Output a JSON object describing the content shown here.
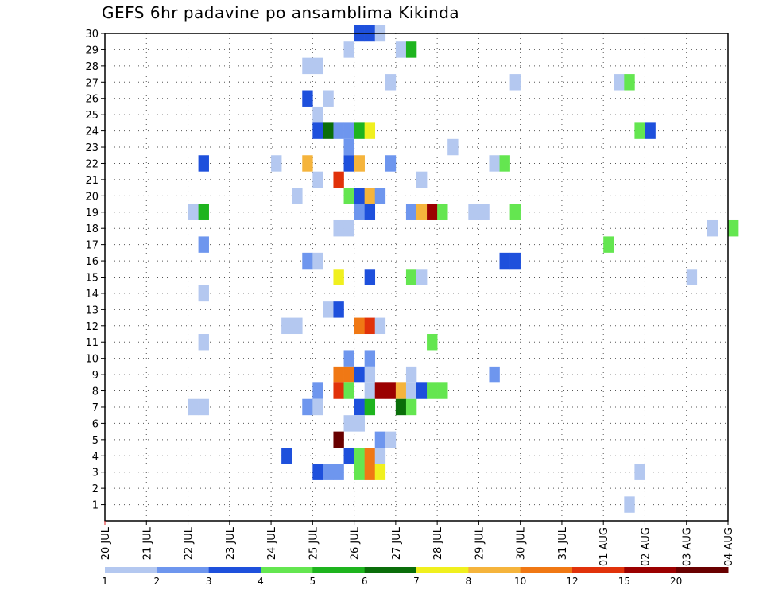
{
  "chart_data": {
    "type": "heatmap",
    "title": "GEFS 6hr padavine po ansamblima Kikinda",
    "xlabel": "",
    "ylabel": "",
    "x_tick_labels": [
      "20 JUL",
      "21 JUL",
      "22 JUL",
      "23 JUL",
      "24 JUL",
      "25 JUL",
      "26 JUL",
      "27 JUL",
      "28 JUL",
      "29 JUL",
      "30 JUL",
      "31 JUL",
      "01 AUG",
      "02 AUG",
      "03 AUG",
      "04 AUG"
    ],
    "x_range_days": [
      0,
      15
    ],
    "y_tick_labels": [
      "1",
      "2",
      "3",
      "4",
      "5",
      "6",
      "7",
      "8",
      "9",
      "10",
      "11",
      "12",
      "13",
      "14",
      "15",
      "16",
      "17",
      "18",
      "19",
      "20",
      "21",
      "22",
      "23",
      "24",
      "25",
      "26",
      "27",
      "28",
      "29",
      "30"
    ],
    "y_range": [
      0,
      30
    ],
    "grid": true,
    "legend_position": "bottom",
    "color_scale": {
      "colors": [
        "#b4c8f0",
        "#6e96ee",
        "#1e50dc",
        "#64e650",
        "#1eb41e",
        "#0a6e0a",
        "#f0f01e",
        "#f5b43c",
        "#f07814",
        "#e1320a",
        "#9b0000",
        "#690000"
      ],
      "labels": [
        "1",
        "2",
        "3",
        "4",
        "5",
        "6",
        "7",
        "8",
        "10",
        "12",
        "15",
        "20"
      ]
    },
    "cells_note": "x = forecast time in days after 20 JUL 00UTC (6-hourly steps), y = ensemble member, v = colour class index",
    "cells": [
      {
        "x": 6.0,
        "y": 30,
        "v": 2
      },
      {
        "x": 6.25,
        "y": 30,
        "v": 2
      },
      {
        "x": 6.5,
        "y": 30,
        "v": 0
      },
      {
        "x": 5.75,
        "y": 29,
        "v": 0
      },
      {
        "x": 7.0,
        "y": 29,
        "v": 0
      },
      {
        "x": 7.25,
        "y": 29,
        "v": 4
      },
      {
        "x": 4.75,
        "y": 28,
        "v": 0
      },
      {
        "x": 5.0,
        "y": 28,
        "v": 0
      },
      {
        "x": 6.75,
        "y": 27,
        "v": 0
      },
      {
        "x": 9.75,
        "y": 27,
        "v": 0
      },
      {
        "x": 12.25,
        "y": 27,
        "v": 0
      },
      {
        "x": 12.5,
        "y": 27,
        "v": 3
      },
      {
        "x": 4.75,
        "y": 26,
        "v": 2
      },
      {
        "x": 5.25,
        "y": 26,
        "v": 0
      },
      {
        "x": 5.0,
        "y": 25,
        "v": 0
      },
      {
        "x": 5.0,
        "y": 24,
        "v": 2
      },
      {
        "x": 5.25,
        "y": 24,
        "v": 5
      },
      {
        "x": 5.5,
        "y": 24,
        "v": 1
      },
      {
        "x": 5.75,
        "y": 24,
        "v": 1
      },
      {
        "x": 6.0,
        "y": 24,
        "v": 4
      },
      {
        "x": 6.25,
        "y": 24,
        "v": 6
      },
      {
        "x": 12.75,
        "y": 24,
        "v": 3
      },
      {
        "x": 13.0,
        "y": 24,
        "v": 2
      },
      {
        "x": 5.75,
        "y": 23,
        "v": 1
      },
      {
        "x": 8.25,
        "y": 23,
        "v": 0
      },
      {
        "x": 2.25,
        "y": 22,
        "v": 2
      },
      {
        "x": 4.0,
        "y": 22,
        "v": 0
      },
      {
        "x": 4.75,
        "y": 22,
        "v": 7
      },
      {
        "x": 5.75,
        "y": 22,
        "v": 2
      },
      {
        "x": 6.0,
        "y": 22,
        "v": 7
      },
      {
        "x": 6.75,
        "y": 22,
        "v": 1
      },
      {
        "x": 9.25,
        "y": 22,
        "v": 0
      },
      {
        "x": 9.5,
        "y": 22,
        "v": 3
      },
      {
        "x": 5.0,
        "y": 21,
        "v": 0
      },
      {
        "x": 5.5,
        "y": 21,
        "v": 9
      },
      {
        "x": 7.5,
        "y": 21,
        "v": 0
      },
      {
        "x": 4.5,
        "y": 20,
        "v": 0
      },
      {
        "x": 5.75,
        "y": 20,
        "v": 3
      },
      {
        "x": 6.0,
        "y": 20,
        "v": 2
      },
      {
        "x": 6.25,
        "y": 20,
        "v": 7
      },
      {
        "x": 6.5,
        "y": 20,
        "v": 1
      },
      {
        "x": 2.0,
        "y": 19,
        "v": 0
      },
      {
        "x": 2.25,
        "y": 19,
        "v": 4
      },
      {
        "x": 6.0,
        "y": 19,
        "v": 1
      },
      {
        "x": 6.25,
        "y": 19,
        "v": 2
      },
      {
        "x": 7.25,
        "y": 19,
        "v": 1
      },
      {
        "x": 7.5,
        "y": 19,
        "v": 7
      },
      {
        "x": 7.75,
        "y": 19,
        "v": 10
      },
      {
        "x": 8.0,
        "y": 19,
        "v": 3
      },
      {
        "x": 8.75,
        "y": 19,
        "v": 0
      },
      {
        "x": 9.0,
        "y": 19,
        "v": 0
      },
      {
        "x": 9.75,
        "y": 19,
        "v": 3
      },
      {
        "x": 5.5,
        "y": 18,
        "v": 0
      },
      {
        "x": 5.75,
        "y": 18,
        "v": 0
      },
      {
        "x": 14.5,
        "y": 18,
        "v": 0
      },
      {
        "x": 15.0,
        "y": 18,
        "v": 3
      },
      {
        "x": 2.25,
        "y": 17,
        "v": 1
      },
      {
        "x": 12.0,
        "y": 17,
        "v": 3
      },
      {
        "x": 4.75,
        "y": 16,
        "v": 1
      },
      {
        "x": 5.0,
        "y": 16,
        "v": 0
      },
      {
        "x": 9.5,
        "y": 16,
        "v": 2
      },
      {
        "x": 9.75,
        "y": 16,
        "v": 2
      },
      {
        "x": 5.5,
        "y": 15,
        "v": 6
      },
      {
        "x": 6.25,
        "y": 15,
        "v": 2
      },
      {
        "x": 7.25,
        "y": 15,
        "v": 3
      },
      {
        "x": 7.5,
        "y": 15,
        "v": 0
      },
      {
        "x": 14.0,
        "y": 15,
        "v": 0
      },
      {
        "x": 2.25,
        "y": 14,
        "v": 0
      },
      {
        "x": 5.25,
        "y": 13,
        "v": 0
      },
      {
        "x": 5.5,
        "y": 13,
        "v": 2
      },
      {
        "x": 4.25,
        "y": 12,
        "v": 0
      },
      {
        "x": 4.5,
        "y": 12,
        "v": 0
      },
      {
        "x": 6.0,
        "y": 12,
        "v": 8
      },
      {
        "x": 6.25,
        "y": 12,
        "v": 9
      },
      {
        "x": 6.5,
        "y": 12,
        "v": 0
      },
      {
        "x": 2.25,
        "y": 11,
        "v": 0
      },
      {
        "x": 7.75,
        "y": 11,
        "v": 3
      },
      {
        "x": 5.75,
        "y": 10,
        "v": 1
      },
      {
        "x": 6.25,
        "y": 10,
        "v": 1
      },
      {
        "x": 5.5,
        "y": 9,
        "v": 8
      },
      {
        "x": 5.75,
        "y": 9,
        "v": 8
      },
      {
        "x": 6.0,
        "y": 9,
        "v": 2
      },
      {
        "x": 6.25,
        "y": 9,
        "v": 0
      },
      {
        "x": 7.25,
        "y": 9,
        "v": 0
      },
      {
        "x": 9.25,
        "y": 9,
        "v": 1
      },
      {
        "x": 5.0,
        "y": 8,
        "v": 1
      },
      {
        "x": 5.5,
        "y": 8,
        "v": 9
      },
      {
        "x": 5.75,
        "y": 8,
        "v": 3
      },
      {
        "x": 6.25,
        "y": 8,
        "v": 0
      },
      {
        "x": 6.5,
        "y": 8,
        "v": 10
      },
      {
        "x": 6.75,
        "y": 8,
        "v": 10
      },
      {
        "x": 7.0,
        "y": 8,
        "v": 7
      },
      {
        "x": 7.25,
        "y": 8,
        "v": 0
      },
      {
        "x": 7.5,
        "y": 8,
        "v": 2
      },
      {
        "x": 7.75,
        "y": 8,
        "v": 3
      },
      {
        "x": 8.0,
        "y": 8,
        "v": 3
      },
      {
        "x": 2.0,
        "y": 7,
        "v": 0
      },
      {
        "x": 2.25,
        "y": 7,
        "v": 0
      },
      {
        "x": 4.75,
        "y": 7,
        "v": 1
      },
      {
        "x": 5.0,
        "y": 7,
        "v": 0
      },
      {
        "x": 6.0,
        "y": 7,
        "v": 2
      },
      {
        "x": 6.25,
        "y": 7,
        "v": 4
      },
      {
        "x": 7.0,
        "y": 7,
        "v": 5
      },
      {
        "x": 7.25,
        "y": 7,
        "v": 3
      },
      {
        "x": 5.75,
        "y": 6,
        "v": 0
      },
      {
        "x": 6.0,
        "y": 6,
        "v": 0
      },
      {
        "x": 5.5,
        "y": 5,
        "v": 11
      },
      {
        "x": 6.5,
        "y": 5,
        "v": 1
      },
      {
        "x": 6.75,
        "y": 5,
        "v": 0
      },
      {
        "x": 4.25,
        "y": 4,
        "v": 2
      },
      {
        "x": 5.75,
        "y": 4,
        "v": 2
      },
      {
        "x": 6.0,
        "y": 4,
        "v": 3
      },
      {
        "x": 6.25,
        "y": 4,
        "v": 8
      },
      {
        "x": 6.5,
        "y": 4,
        "v": 0
      },
      {
        "x": 5.0,
        "y": 3,
        "v": 2
      },
      {
        "x": 5.25,
        "y": 3,
        "v": 1
      },
      {
        "x": 5.5,
        "y": 3,
        "v": 1
      },
      {
        "x": 6.0,
        "y": 3,
        "v": 3
      },
      {
        "x": 6.25,
        "y": 3,
        "v": 8
      },
      {
        "x": 6.5,
        "y": 3,
        "v": 6
      },
      {
        "x": 12.75,
        "y": 3,
        "v": 0
      },
      {
        "x": 12.5,
        "y": 1,
        "v": 0
      }
    ]
  }
}
